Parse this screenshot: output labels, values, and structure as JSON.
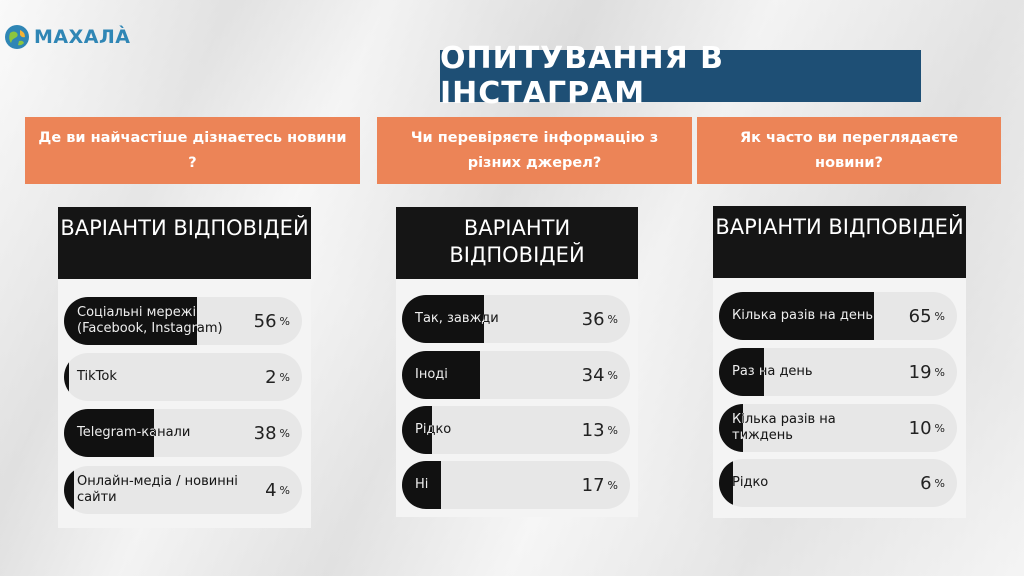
{
  "brand": {
    "name": "МАХАЛÀ"
  },
  "title": "ОПИТУВАННЯ В ІНСТАГРАМ",
  "colors": {
    "accent_orange": "#ec8457",
    "title_blue": "#1e4f75",
    "bar_black": "#111111",
    "brand_blue": "#2f86b5"
  },
  "chart_data": [
    {
      "type": "bar",
      "title": "Де ви найчастіше дізнаєтесь новини ?",
      "header": "ВАРІАНТИ ВІДПОВІДЕЙ",
      "categories": [
        "Соціальні мережі (Facebook, Instagram)",
        "TikTok",
        "Telegram-канали",
        "Онлайн-медіа / новинні сайти"
      ],
      "values": [
        56,
        2,
        38,
        4
      ],
      "unit": "%"
    },
    {
      "type": "bar",
      "title": "Чи перевіряєте інформацію з різних джерел?",
      "header": "ВАРІАНТИ ВІДПОВІДЕЙ",
      "categories": [
        "Так, завжди",
        "Іноді",
        "Рідко",
        "Ні"
      ],
      "values": [
        36,
        34,
        13,
        17
      ],
      "unit": "%"
    },
    {
      "type": "bar",
      "title": "Як часто ви переглядаєте новини?",
      "header": "ВАРІАНТИ ВІДПОВІДЕЙ",
      "categories": [
        "Кілька разів на день",
        "Раз на день",
        "Кілька разів на тиждень",
        "Рідко"
      ],
      "values": [
        65,
        19,
        10,
        6
      ],
      "unit": "%"
    }
  ]
}
